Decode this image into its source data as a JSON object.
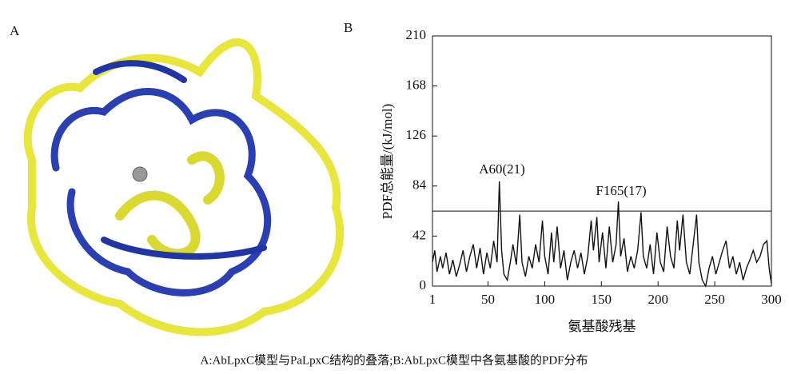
{
  "panel_labels": [
    "A",
    "B"
  ],
  "caption": "A:AbLpxC模型与PaLpxC结构的叠落;B:AbLpxC模型中各氨基酸的PDF分布",
  "chart_data": {
    "type": "line",
    "xlabel": "氨基酸残基",
    "ylabel": "PDF总能量/(kJ/mol)",
    "xlim": [
      1,
      300
    ],
    "xticks": [
      1,
      50,
      100,
      150,
      200,
      250,
      300
    ],
    "ylim": [
      0,
      210
    ],
    "yticks": [
      0,
      42,
      84,
      126,
      168,
      210
    ],
    "threshold": 63,
    "annotations": [
      "A60(21)",
      "F165(17)"
    ],
    "series": [
      {
        "name": "PDF",
        "color": "#111111",
        "x": [
          1,
          3,
          5,
          8,
          10,
          13,
          16,
          19,
          22,
          25,
          28,
          31,
          34,
          37,
          40,
          43,
          46,
          49,
          52,
          55,
          58,
          60,
          62,
          64,
          67,
          70,
          72,
          75,
          78,
          80,
          83,
          86,
          89,
          92,
          95,
          98,
          100,
          103,
          106,
          108,
          111,
          114,
          117,
          120,
          123,
          126,
          129,
          132,
          135,
          138,
          141,
          143,
          146,
          148,
          151,
          154,
          157,
          160,
          163,
          165,
          167,
          170,
          173,
          176,
          179,
          182,
          185,
          187,
          190,
          193,
          196,
          199,
          202,
          205,
          208,
          211,
          214,
          217,
          219,
          222,
          225,
          228,
          231,
          234,
          236,
          239,
          242,
          245,
          248,
          251,
          254,
          257,
          260,
          263,
          266,
          269,
          272,
          275,
          278,
          281,
          284,
          287,
          290,
          293,
          296,
          298,
          300
        ],
        "values": [
          20,
          30,
          12,
          25,
          15,
          28,
          10,
          22,
          8,
          18,
          30,
          12,
          25,
          35,
          15,
          32,
          10,
          28,
          15,
          38,
          20,
          88,
          30,
          10,
          5,
          22,
          35,
          18,
          60,
          20,
          8,
          25,
          15,
          35,
          20,
          55,
          25,
          10,
          45,
          20,
          50,
          15,
          30,
          5,
          20,
          30,
          15,
          28,
          10,
          25,
          55,
          30,
          58,
          20,
          45,
          15,
          50,
          20,
          35,
          71,
          25,
          40,
          12,
          25,
          15,
          30,
          62,
          25,
          15,
          35,
          10,
          45,
          20,
          12,
          50,
          25,
          15,
          55,
          30,
          60,
          20,
          10,
          35,
          60,
          20,
          5,
          0,
          15,
          25,
          10,
          20,
          30,
          38,
          15,
          25,
          10,
          20,
          5,
          15,
          22,
          30,
          20,
          25,
          35,
          38,
          15,
          2
        ]
      }
    ]
  }
}
